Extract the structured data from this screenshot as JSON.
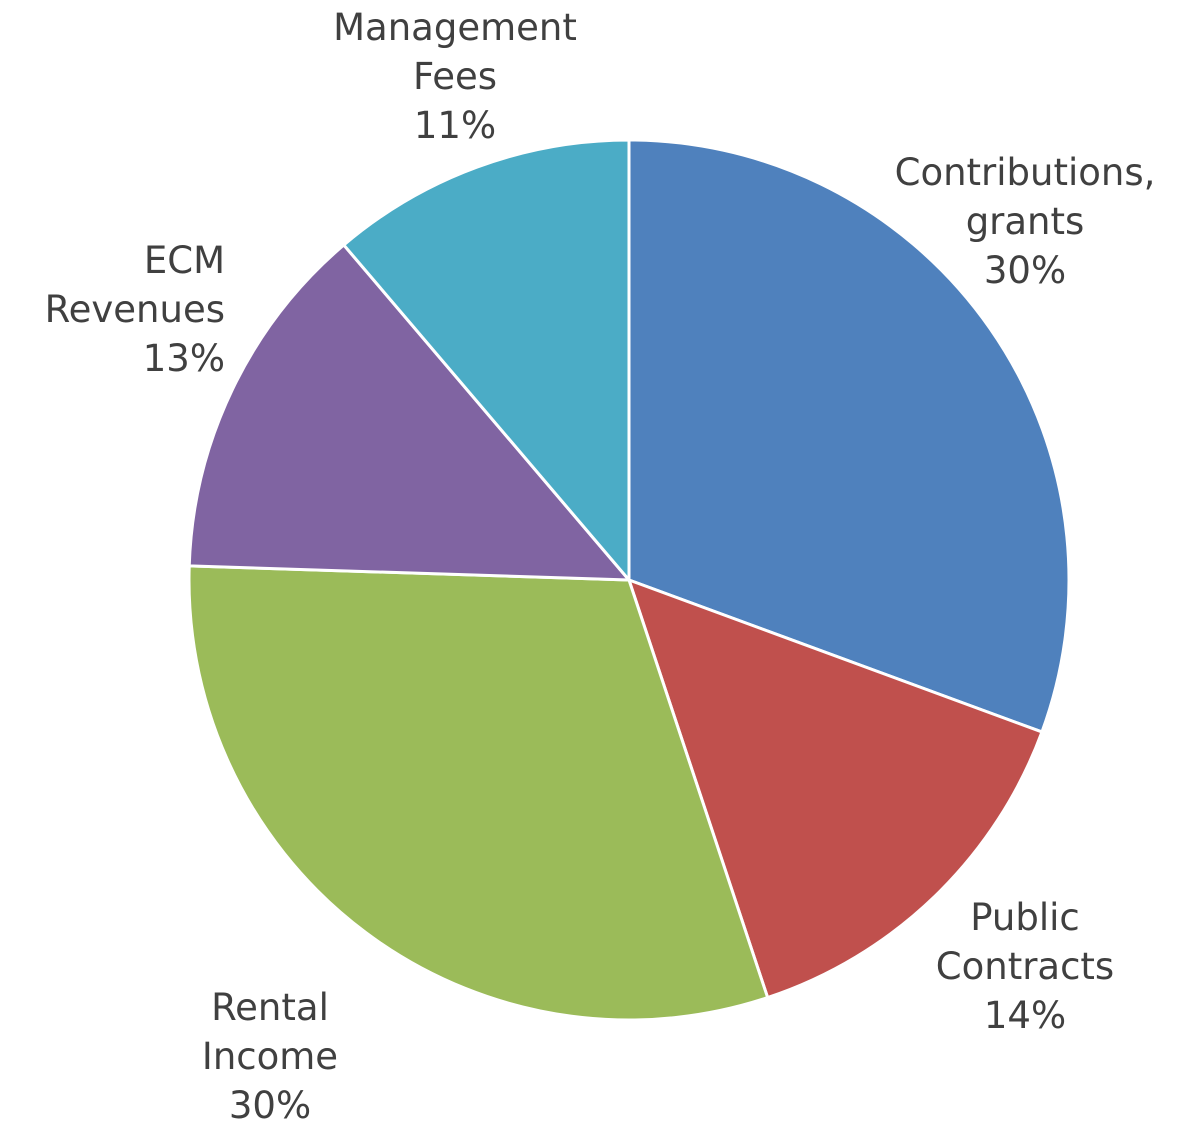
{
  "chart_data": {
    "type": "pie",
    "categories": [
      "Contributions, grants",
      "Public Contracts",
      "Rental Income",
      "ECM Revenues",
      "Management Fees"
    ],
    "values": [
      30,
      14,
      30,
      13,
      11
    ],
    "value_labels": [
      "30%",
      "14%",
      "30%",
      "13%",
      "11%"
    ],
    "colors": [
      "#4f81bd",
      "#c0504d",
      "#9bbb59",
      "#8064a2",
      "#4bacc6"
    ]
  }
}
